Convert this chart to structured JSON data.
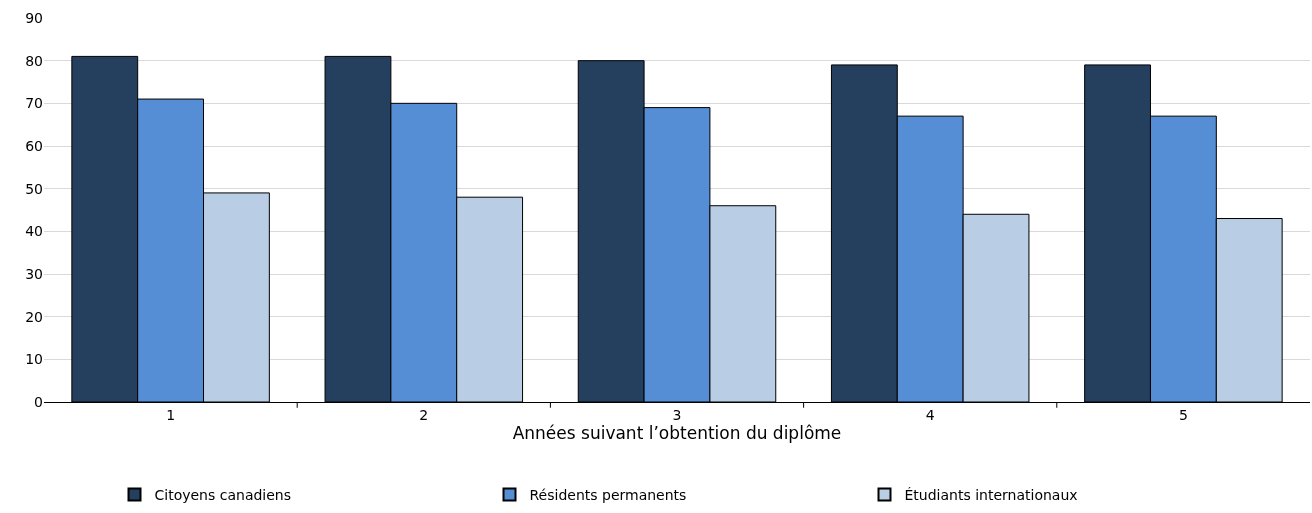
{
  "chart_data": {
    "type": "bar",
    "xlabel": "Années suivant l’obtention du diplôme",
    "categories": [
      "1",
      "2",
      "3",
      "4",
      "5"
    ],
    "series": [
      {
        "name": "Citoyens canadiens",
        "color": "#253f5f",
        "values": [
          81,
          81,
          80,
          79,
          79
        ]
      },
      {
        "name": "Résidents permanents",
        "color": "#558ed5",
        "values": [
          71,
          70,
          69,
          67,
          67
        ]
      },
      {
        "name": "Étudiants internationaux",
        "color": "#b9cde5",
        "values": [
          49,
          48,
          46,
          44,
          43
        ]
      }
    ],
    "ylim": [
      0,
      90
    ],
    "yticks": [
      0,
      10,
      20,
      30,
      40,
      50,
      60,
      70,
      80,
      90
    ],
    "grid": "y",
    "legend": "bottom"
  }
}
